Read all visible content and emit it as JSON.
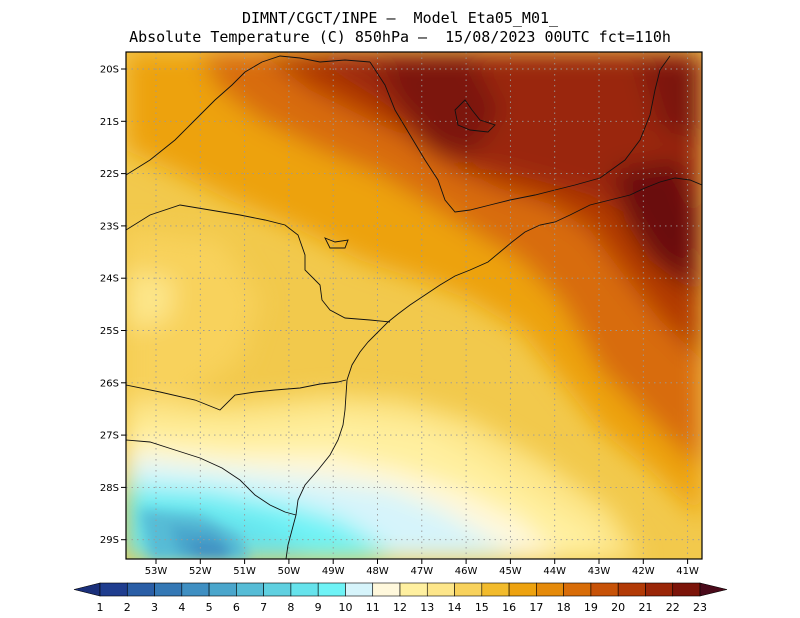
{
  "header": {
    "line1": "DIMNT/CGCT/INPE –  Model Eta05_M01_",
    "line2": "Absolute Temperature (C) 850hPa –  15/08/2023 00UTC fct=110h"
  },
  "axes": {
    "lat_labels": [
      "20S",
      "21S",
      "22S",
      "23S",
      "24S",
      "25S",
      "26S",
      "27S",
      "28S",
      "29S"
    ],
    "lon_labels": [
      "53W",
      "52W",
      "51W",
      "50W",
      "49W",
      "48W",
      "47W",
      "46W",
      "45W",
      "44W",
      "43W",
      "42W",
      "41W"
    ]
  },
  "colorbar": {
    "labels": [
      "1",
      "2",
      "3",
      "4",
      "5",
      "6",
      "7",
      "8",
      "9",
      "10",
      "11",
      "12",
      "13",
      "14",
      "15",
      "16",
      "17",
      "18",
      "19",
      "20",
      "21",
      "22",
      "23"
    ],
    "colors": [
      "#1f3d8f",
      "#2a5ea6",
      "#3478b5",
      "#3f8fc2",
      "#4aa6cc",
      "#56bcd6",
      "#5fd0e0",
      "#66e3ec",
      "#6ef3f6",
      "#d6f4fb",
      "#fff8dc",
      "#fff0a0",
      "#fde68a",
      "#f8d25c",
      "#f2bb2c",
      "#eda20f",
      "#e58a0a",
      "#d86c08",
      "#c75207",
      "#b23a06",
      "#9a2608",
      "#7c1409",
      "#5a0a12"
    ],
    "left_arrow_color": "#1a2f7a",
    "right_arrow_color": "#4a0a1a"
  },
  "map": {
    "background_color": "#f2c94c",
    "grid": "dotted"
  }
}
